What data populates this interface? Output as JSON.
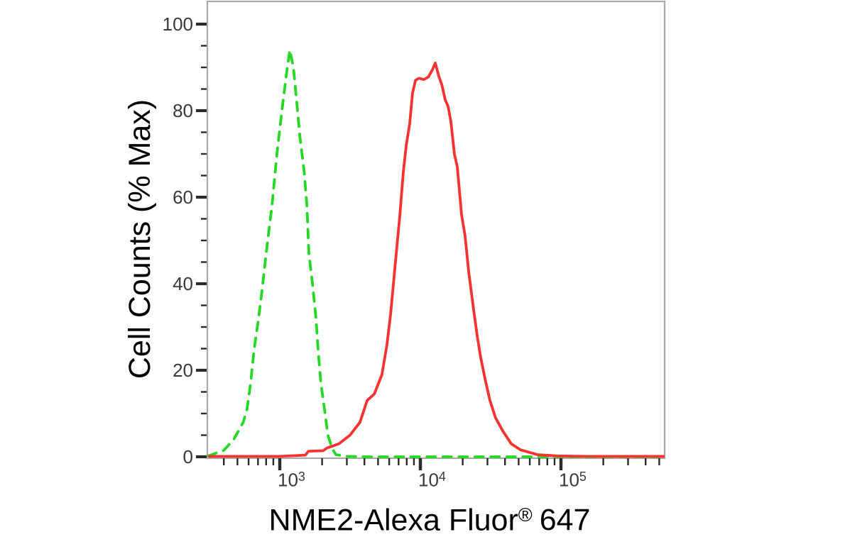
{
  "chart_data": {
    "type": "line",
    "title": "",
    "xlabel": "NME2-Alexa Fluor® 647",
    "xlabel_main": "NME2-Alexa Fluor",
    "xlabel_registered": "®",
    "xlabel_suffix": "647",
    "ylabel": "Cell Counts (% Max)",
    "x_scale": "log",
    "x_range": [
      309,
      552000
    ],
    "ylim": [
      0,
      100
    ],
    "grid": false,
    "legend": "none",
    "y_ticks": [
      0,
      20,
      40,
      60,
      80,
      100
    ],
    "y_minor_tick_step": 5,
    "x_ticks_major": [
      1000,
      10000,
      100000
    ],
    "x_tick_labels": [
      {
        "base": "10",
        "exp": "3"
      },
      {
        "base": "10",
        "exp": "4"
      },
      {
        "base": "10",
        "exp": "5"
      }
    ],
    "x_ticks_minor": [
      400,
      500,
      600,
      700,
      800,
      900,
      2000,
      3000,
      4000,
      5000,
      6000,
      7000,
      8000,
      9000,
      20000,
      30000,
      40000,
      50000,
      60000,
      70000,
      80000,
      90000,
      200000,
      300000,
      400000,
      500000
    ],
    "colors": {
      "green_curve": "#24d824",
      "red_curve": "#f83131",
      "frame": "#a9a9a9",
      "tick": "#2b2b2b",
      "text": "#000000"
    },
    "series": [
      {
        "name": "green_dashed_curve",
        "style": "dashed",
        "color": "#24d824",
        "peak": {
          "x": 1180,
          "y": 94
        },
        "points": [
          [
            310,
            0.2
          ],
          [
            400,
            1.5
          ],
          [
            470,
            4
          ],
          [
            550,
            8
          ],
          [
            585,
            11
          ],
          [
            620,
            17
          ],
          [
            658,
            25
          ],
          [
            700,
            31
          ],
          [
            745,
            38
          ],
          [
            800,
            47
          ],
          [
            880,
            58
          ],
          [
            955,
            70
          ],
          [
            1035,
            80
          ],
          [
            1110,
            88
          ],
          [
            1180,
            94
          ],
          [
            1250,
            90
          ],
          [
            1320,
            82
          ],
          [
            1390,
            74
          ],
          [
            1490,
            66
          ],
          [
            1560,
            58
          ],
          [
            1610,
            47
          ],
          [
            1710,
            40
          ],
          [
            1810,
            32
          ],
          [
            1880,
            24
          ],
          [
            1960,
            17
          ],
          [
            2080,
            11
          ],
          [
            2200,
            5
          ],
          [
            2350,
            2
          ],
          [
            2510,
            0.5
          ],
          [
            3000,
            0.1
          ],
          [
            4000,
            0
          ],
          [
            10000,
            0
          ],
          [
            50000,
            0
          ],
          [
            200000,
            0
          ],
          [
            545000,
            0
          ]
        ]
      },
      {
        "name": "red_solid_curve",
        "style": "solid",
        "color": "#f83131",
        "peak": {
          "x": 12760,
          "y": 91
        },
        "points": [
          [
            310,
            0.1
          ],
          [
            1000,
            0.1
          ],
          [
            1520,
            0.4
          ],
          [
            1600,
            1.3
          ],
          [
            2030,
            1.4
          ],
          [
            2160,
            2
          ],
          [
            2630,
            3
          ],
          [
            3160,
            5
          ],
          [
            3720,
            8
          ],
          [
            4180,
            13
          ],
          [
            4700,
            14.5
          ],
          [
            5330,
            19
          ],
          [
            5790,
            26
          ],
          [
            6140,
            33
          ],
          [
            6650,
            45
          ],
          [
            7150,
            56
          ],
          [
            7570,
            66
          ],
          [
            7930,
            72
          ],
          [
            8400,
            77
          ],
          [
            8790,
            84
          ],
          [
            9230,
            87
          ],
          [
            9770,
            87.5
          ],
          [
            10600,
            87.2
          ],
          [
            11400,
            87.8
          ],
          [
            12200,
            89.5
          ],
          [
            12760,
            91
          ],
          [
            13520,
            88
          ],
          [
            14200,
            86
          ],
          [
            15030,
            82.5
          ],
          [
            15740,
            81
          ],
          [
            16490,
            77.5
          ],
          [
            17460,
            70
          ],
          [
            18310,
            67
          ],
          [
            19630,
            56
          ],
          [
            20800,
            51
          ],
          [
            22030,
            43
          ],
          [
            23930,
            34
          ],
          [
            25350,
            28
          ],
          [
            26850,
            23
          ],
          [
            28840,
            18
          ],
          [
            31260,
            13
          ],
          [
            34280,
            9
          ],
          [
            38550,
            6
          ],
          [
            44290,
            3
          ],
          [
            51520,
            1.6
          ],
          [
            68080,
            0.5
          ],
          [
            94400,
            0.2
          ],
          [
            150000,
            0.1
          ],
          [
            545000,
            0.1
          ]
        ]
      }
    ]
  }
}
